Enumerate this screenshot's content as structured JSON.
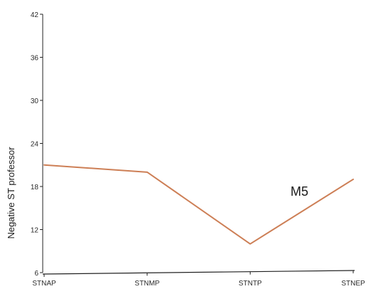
{
  "chart_data": {
    "type": "line",
    "categories": [
      "STNAP",
      "STNMP",
      "STNTP",
      "STNEP"
    ],
    "series": [
      {
        "name": "M5",
        "values": [
          21,
          20,
          10,
          19
        ],
        "color": "#cd7f56"
      }
    ],
    "xlabel": "",
    "ylabel": "Negative ST professor",
    "ylim": [
      6,
      42
    ],
    "yticks": [
      6,
      12,
      18,
      24,
      30,
      36,
      42
    ],
    "grid": false,
    "axis_color": "#222222"
  }
}
